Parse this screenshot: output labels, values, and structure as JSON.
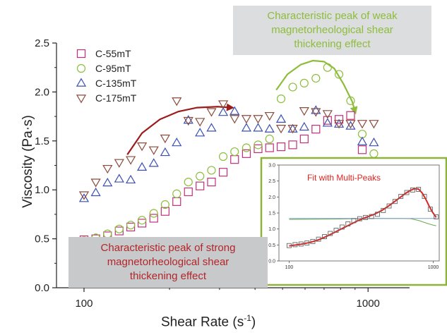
{
  "chart_data": {
    "type": "scatter",
    "xlabel": "Shear Rate (s",
    "xlabel_sup": "-1",
    "xlabel_end": ")",
    "ylabel": "Viscosity (Pa·s)",
    "x_scale": "log",
    "xlim": [
      80,
      1400
    ],
    "ylim": [
      0.0,
      2.5
    ],
    "x_ticks": [
      {
        "value": 100,
        "label": "100"
      },
      {
        "value": 1000,
        "label": "1000"
      }
    ],
    "y_ticks": [
      {
        "value": 0.0,
        "label": "0.0"
      },
      {
        "value": 0.5,
        "label": "0.5"
      },
      {
        "value": 1.0,
        "label": "1.0"
      },
      {
        "value": 1.5,
        "label": "1.5"
      },
      {
        "value": 2.0,
        "label": "2.0"
      },
      {
        "value": 2.5,
        "label": "2.5"
      }
    ],
    "grid": false,
    "legend_position": "top-left",
    "series": [
      {
        "name": "C-55mT",
        "marker": "square",
        "color": "#c0307a",
        "x": [
          100,
          110,
          121,
          133,
          146,
          160,
          176,
          193,
          212,
          233,
          256,
          281,
          309,
          339,
          373,
          410,
          450,
          494,
          543,
          596,
          655,
          720,
          790,
          868,
          954,
          1048
        ],
        "y": [
          0.49,
          0.5,
          0.53,
          0.58,
          0.62,
          0.66,
          0.71,
          0.78,
          0.88,
          0.98,
          1.04,
          1.08,
          1.18,
          1.31,
          1.37,
          1.42,
          1.43,
          1.44,
          1.46,
          1.52,
          1.62,
          1.71,
          1.72,
          1.76,
          1.41,
          1.27
        ]
      },
      {
        "name": "C-95mT",
        "marker": "circle",
        "color": "#8dbd3a",
        "x": [
          100,
          110,
          121,
          133,
          146,
          160,
          176,
          193,
          212,
          233,
          256,
          281,
          309,
          339,
          373,
          410,
          450,
          494,
          543,
          596,
          655,
          720,
          790,
          868,
          954,
          1048
        ],
        "y": [
          0.48,
          0.51,
          0.55,
          0.6,
          0.64,
          0.69,
          0.76,
          0.85,
          0.96,
          1.08,
          1.14,
          1.2,
          1.34,
          1.39,
          1.43,
          1.46,
          1.52,
          1.93,
          2.05,
          2.09,
          2.14,
          2.25,
          2.18,
          1.91,
          1.57,
          1.37
        ]
      },
      {
        "name": "C-135mT",
        "marker": "triangle-up",
        "color": "#3a4fb0",
        "x": [
          100,
          110,
          121,
          133,
          146,
          160,
          176,
          193,
          212,
          233,
          256,
          281,
          309,
          339,
          373,
          410,
          450,
          494,
          543,
          596,
          655,
          720,
          790,
          868,
          954,
          1048
        ],
        "y": [
          0.91,
          0.97,
          1.07,
          1.11,
          1.1,
          1.23,
          1.27,
          1.38,
          1.48,
          1.71,
          1.58,
          1.63,
          1.79,
          1.8,
          1.63,
          1.63,
          1.62,
          1.72,
          1.62,
          1.64,
          1.81,
          1.68,
          1.67,
          1.65,
          1.49,
          1.48
        ]
      },
      {
        "name": "C-175mT",
        "marker": "triangle-down",
        "color": "#8b4a3a",
        "x": [
          100,
          110,
          121,
          133,
          146,
          160,
          176,
          193,
          212,
          233,
          256,
          281,
          309,
          339,
          373,
          410,
          450,
          494,
          543,
          596,
          655,
          720,
          790,
          868,
          954,
          1048
        ],
        "y": [
          0.95,
          1.08,
          1.22,
          1.28,
          1.31,
          1.45,
          1.41,
          1.53,
          1.91,
          1.71,
          1.7,
          1.8,
          1.88,
          1.73,
          1.73,
          1.73,
          1.76,
          1.63,
          1.63,
          1.81,
          1.8,
          1.78,
          1.68,
          1.68,
          1.68,
          1.68
        ]
      }
    ],
    "annotations": [
      {
        "text_lines": [
          "Characteristic peak of weak",
          "magnetorheological shear",
          "thickening effect"
        ],
        "color": "#8dbd3a",
        "background": "#dcdddf"
      },
      {
        "text_lines": [
          "Characteristic peak of strong",
          "magnetorheological shear",
          "thickening effect"
        ],
        "color": "#b1262a",
        "background": "#c8c9cb"
      }
    ],
    "arrows": [
      {
        "color": "#9c1c1c",
        "points": [
          [
            142,
            1.36
          ],
          [
            160,
            1.58
          ],
          [
            185,
            1.72
          ],
          [
            215,
            1.8
          ],
          [
            250,
            1.84
          ],
          [
            295,
            1.85
          ],
          [
            330,
            1.84
          ]
        ]
      },
      {
        "color": "#8dbd3a",
        "points": [
          [
            475,
            2.02
          ],
          [
            520,
            2.18
          ],
          [
            580,
            2.28
          ],
          [
            640,
            2.32
          ],
          [
            700,
            2.31
          ],
          [
            760,
            2.24
          ],
          [
            820,
            2.08
          ],
          [
            880,
            1.9
          ],
          [
            900,
            1.8
          ]
        ]
      }
    ],
    "inset": {
      "title": "Fit with Multi-Peaks",
      "border_color": "#8db33a",
      "x_scale": "log",
      "xlim": [
        85,
        1100
      ],
      "ylim": [
        0.0,
        3.0
      ],
      "x_ticks": [
        {
          "value": 100,
          "label": "100"
        },
        {
          "value": 1000,
          "label": "1000"
        }
      ],
      "y_ticks": [
        {
          "value": 0.0,
          "label": "0.0"
        },
        {
          "value": 0.5,
          "label": "0.5"
        },
        {
          "value": 1.0,
          "label": "1.0"
        },
        {
          "value": 1.5,
          "label": "1.5"
        },
        {
          "value": 2.0,
          "label": "2.0"
        },
        {
          "value": 2.5,
          "label": "2.5"
        },
        {
          "value": 3.0,
          "label": "3.0"
        }
      ],
      "data": {
        "x": [
          100,
          110,
          121,
          133,
          146,
          160,
          176,
          193,
          212,
          233,
          256,
          281,
          309,
          339,
          373,
          410,
          450,
          494,
          543,
          596,
          655,
          720,
          790,
          868,
          954,
          1048
        ],
        "y": [
          0.48,
          0.51,
          0.53,
          0.56,
          0.61,
          0.68,
          0.76,
          0.86,
          0.96,
          1.06,
          1.16,
          1.26,
          1.32,
          1.36,
          1.39,
          1.46,
          1.58,
          1.72,
          1.86,
          2.02,
          2.14,
          2.22,
          2.24,
          2.02,
          1.62,
          1.38
        ]
      },
      "fit": {
        "color": "#e0231f",
        "x": [
          100,
          120,
          140,
          160,
          180,
          200,
          230,
          260,
          300,
          340,
          390,
          440,
          490,
          540,
          590,
          640,
          690,
          740,
          790,
          840,
          890,
          940,
          990,
          1048
        ],
        "y": [
          0.47,
          0.52,
          0.58,
          0.66,
          0.76,
          0.86,
          1.0,
          1.12,
          1.26,
          1.36,
          1.46,
          1.58,
          1.72,
          1.86,
          1.99,
          2.11,
          2.2,
          2.26,
          2.25,
          2.12,
          1.92,
          1.7,
          1.52,
          1.36
        ]
      },
      "components": [
        {
          "color": "#6aa84f",
          "x": [
            100,
            200,
            300,
            400,
            500,
            600,
            700,
            800,
            900,
            1000,
            1048
          ],
          "y": [
            1.3,
            1.31,
            1.32,
            1.33,
            1.33,
            1.33,
            1.32,
            1.26,
            1.18,
            1.12,
            1.1
          ]
        },
        {
          "color": "#7a9fd0",
          "x": [
            100,
            200,
            300,
            400,
            500,
            600,
            700,
            800,
            900,
            1000,
            1048
          ],
          "y": [
            1.33,
            1.33,
            1.33,
            1.33,
            1.33,
            1.33,
            1.33,
            1.33,
            1.33,
            1.33,
            1.33
          ]
        }
      ]
    }
  }
}
